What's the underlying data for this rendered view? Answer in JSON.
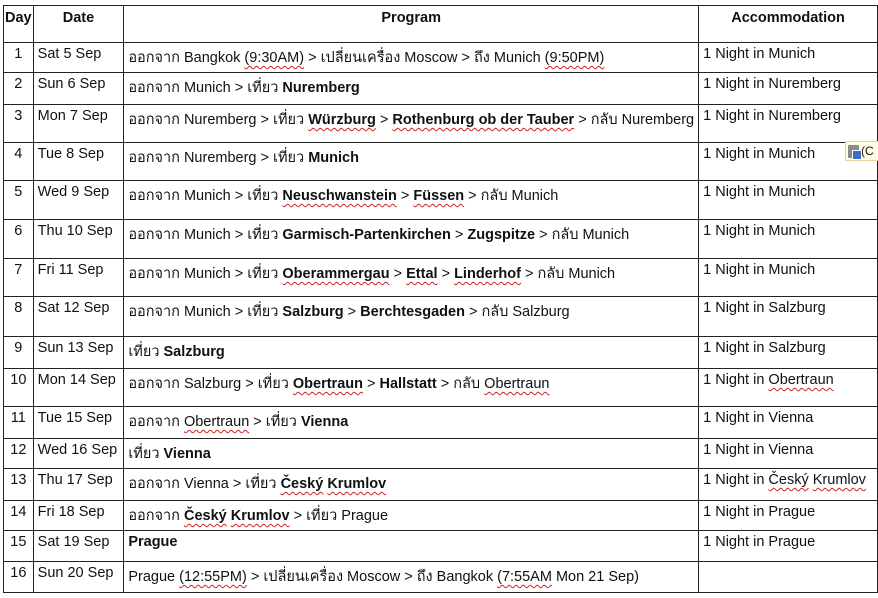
{
  "headers": {
    "day": "Day",
    "date": "Date",
    "program": "Program",
    "accommodation": "Accommodation"
  },
  "rows": [
    {
      "day": "1",
      "date": "Sat 5 Sep",
      "program": [
        {
          "t": "ออกจาก Bangkok "
        },
        {
          "t": "(9:30AM)",
          "s": true
        },
        {
          "t": " > เปลี่ยนเครื่อง Moscow > ถึง Munich "
        },
        {
          "t": "(9:50PM)",
          "s": true
        }
      ],
      "acc": [
        {
          "t": "1 Night in Munich"
        }
      ]
    },
    {
      "day": "2",
      "date": "Sun 6 Sep",
      "program": [
        {
          "t": "ออกจาก Munich > เที่ยว "
        },
        {
          "t": "Nuremberg",
          "b": true
        }
      ],
      "acc": [
        {
          "t": "1 Night in Nuremberg"
        }
      ]
    },
    {
      "day": "3",
      "date": "Mon 7 Sep",
      "program": [
        {
          "t": "ออกจาก Nuremberg > เที่ยว "
        },
        {
          "t": "Würzburg",
          "b": true,
          "s": true
        },
        {
          "t": " > "
        },
        {
          "t": "Rothenburg ob der Tauber",
          "b": true,
          "s": true
        },
        {
          "t": " > กลับ Nuremberg"
        }
      ],
      "acc": [
        {
          "t": "1 Night in Nuremberg"
        }
      ]
    },
    {
      "day": "4",
      "date": "Tue 8 Sep",
      "program": [
        {
          "t": "ออกจาก Nuremberg > เที่ยว "
        },
        {
          "t": "Munich",
          "b": true
        }
      ],
      "acc": [
        {
          "t": "1 Night in Munich"
        }
      ]
    },
    {
      "day": "5",
      "date": "Wed 9 Sep",
      "program": [
        {
          "t": "ออกจาก Munich > เที่ยว "
        },
        {
          "t": "Neuschwanstein",
          "b": true,
          "s": true
        },
        {
          "t": " > "
        },
        {
          "t": "Füssen",
          "b": true,
          "s": true
        },
        {
          "t": " > กลับ Munich"
        }
      ],
      "acc": [
        {
          "t": "1 Night in Munich"
        }
      ]
    },
    {
      "day": "6",
      "date": "Thu 10 Sep",
      "program": [
        {
          "t": "ออกจาก Munich > เที่ยว "
        },
        {
          "t": "Garmisch-Partenkirchen",
          "b": true
        },
        {
          "t": " > "
        },
        {
          "t": "Zugspitze",
          "b": true
        },
        {
          "t": " > กลับ Munich"
        }
      ],
      "acc": [
        {
          "t": "1 Night in Munich"
        }
      ]
    },
    {
      "day": "7",
      "date": "Fri 11 Sep",
      "program": [
        {
          "t": "ออกจาก Munich > เที่ยว "
        },
        {
          "t": "Oberammergau",
          "b": true,
          "s": true
        },
        {
          "t": " > "
        },
        {
          "t": "Ettal",
          "b": true,
          "s": true
        },
        {
          "t": " > "
        },
        {
          "t": "Linderhof",
          "b": true,
          "s": true
        },
        {
          "t": " > กลับ Munich"
        }
      ],
      "acc": [
        {
          "t": "1 Night in Munich"
        }
      ]
    },
    {
      "day": "8",
      "date": "Sat 12 Sep",
      "program": [
        {
          "t": "ออกจาก Munich > เที่ยว "
        },
        {
          "t": "Salzburg",
          "b": true
        },
        {
          "t": " > "
        },
        {
          "t": "Berchtesgaden",
          "b": true
        },
        {
          "t": " > กลับ Salzburg"
        }
      ],
      "acc": [
        {
          "t": "1 Night in Salzburg"
        }
      ]
    },
    {
      "day": "9",
      "date": "Sun 13 Sep",
      "program": [
        {
          "t": "เที่ยว "
        },
        {
          "t": "Salzburg",
          "b": true
        }
      ],
      "acc": [
        {
          "t": "1 Night in Salzburg"
        }
      ]
    },
    {
      "day": "10",
      "date": "Mon 14 Sep",
      "program": [
        {
          "t": "ออกจาก Salzburg > เที่ยว "
        },
        {
          "t": "Obertraun",
          "b": true,
          "s": true
        },
        {
          "t": " > "
        },
        {
          "t": "Hallstatt",
          "b": true
        },
        {
          "t": " > กลับ "
        },
        {
          "t": "Obertraun",
          "s": true
        }
      ],
      "acc": [
        {
          "t": "1 Night in "
        },
        {
          "t": "Obertraun",
          "s": true
        }
      ]
    },
    {
      "day": "11",
      "date": "Tue 15 Sep",
      "program": [
        {
          "t": "ออกจาก "
        },
        {
          "t": "Obertraun",
          "s": true
        },
        {
          "t": " > เที่ยว "
        },
        {
          "t": "Vienna",
          "b": true
        }
      ],
      "acc": [
        {
          "t": "1 Night in Vienna"
        }
      ]
    },
    {
      "day": "12",
      "date": "Wed 16 Sep",
      "program": [
        {
          "t": "เที่ยว "
        },
        {
          "t": "Vienna",
          "b": true
        }
      ],
      "acc": [
        {
          "t": "1 Night in Vienna"
        }
      ]
    },
    {
      "day": "13",
      "date": "Thu 17 Sep",
      "program": [
        {
          "t": "ออกจาก Vienna > เที่ยว "
        },
        {
          "t": "Český",
          "b": true,
          "s": true
        },
        {
          "t": " ",
          "b": true
        },
        {
          "t": "Krumlov",
          "b": true,
          "s": true
        }
      ],
      "acc": [
        {
          "t": "1 Night in "
        },
        {
          "t": "Český",
          "s": true
        },
        {
          "t": " "
        },
        {
          "t": "Krumlov",
          "s": true
        }
      ]
    },
    {
      "day": "14",
      "date": "Fri 18 Sep",
      "program": [
        {
          "t": "ออกจาก "
        },
        {
          "t": "Český",
          "b": true,
          "s": true
        },
        {
          "t": " ",
          "b": true
        },
        {
          "t": "Krumlov",
          "b": true,
          "s": true
        },
        {
          "t": " > เที่ยว Prague"
        }
      ],
      "acc": [
        {
          "t": "1 Night in Prague"
        }
      ]
    },
    {
      "day": "15",
      "date": "Sat 19 Sep",
      "program": [
        {
          "t": "Prague",
          "b": true
        }
      ],
      "acc": [
        {
          "t": "1 Night in Prague"
        }
      ]
    },
    {
      "day": "16",
      "date": "Sun 20 Sep",
      "program": [
        {
          "t": "Prague "
        },
        {
          "t": "(12:55PM)",
          "s": true
        },
        {
          "t": " > เปลี่ยนเครื่อง Moscow > ถึง Bangkok "
        },
        {
          "t": "(7:55AM",
          "s": true
        },
        {
          "t": " Mon 21 Sep)"
        }
      ],
      "acc": []
    }
  ],
  "paste_button": {
    "icon": "clipboard-paste-icon",
    "label": "(C"
  }
}
